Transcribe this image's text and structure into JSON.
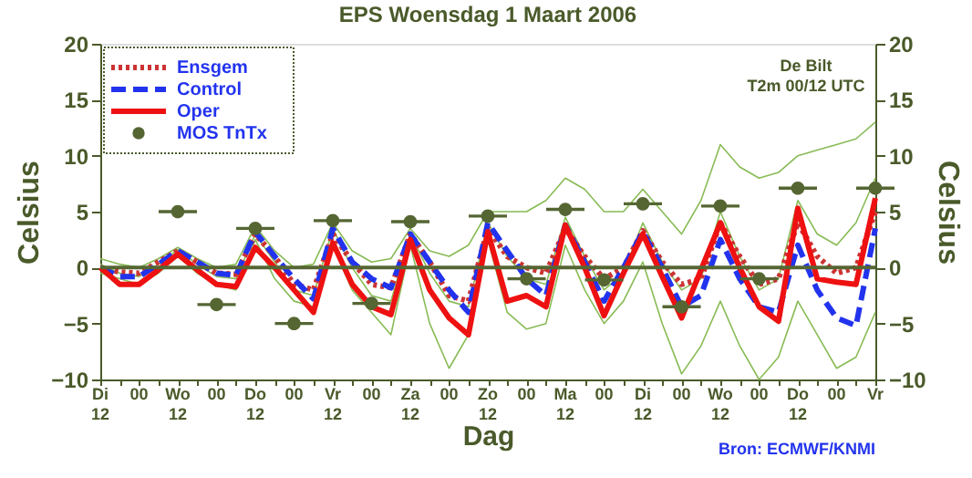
{
  "chart_data": {
    "type": "line",
    "title": "EPS Woensdag 1 Maart 2006",
    "xlabel": "Dag",
    "ylabel": "Celsius",
    "y2label": "Celsius",
    "annotations": [
      "De Bilt",
      "T2m 00/12 UTC",
      "Bron: ECMWF/KNMI"
    ],
    "categories": [
      "Di\n12",
      null,
      "00",
      null,
      "Wo\n12",
      null,
      "00",
      null,
      "Do\n12",
      null,
      "00",
      null,
      "Vr\n12",
      null,
      "00",
      null,
      "Za\n12",
      null,
      "00",
      null,
      "Zo\n12",
      null,
      "00",
      null,
      "Ma\n12",
      null,
      "00",
      null,
      "Di\n12",
      null,
      "00",
      null,
      "Wo\n12",
      null,
      "00",
      null,
      "Do\n12",
      null,
      "00",
      null,
      "Vr"
    ],
    "ylim": [
      -10,
      20
    ],
    "yticks": [
      -10,
      -5,
      0,
      5,
      10,
      15,
      20
    ],
    "y2lim": [
      -10,
      20
    ],
    "y2ticks": [
      -10,
      -5,
      0,
      5,
      10,
      15,
      20
    ],
    "grid": false,
    "legend": "top left",
    "ref_lines": [
      {
        "axis": "y",
        "value": 0,
        "color": "#556633"
      }
    ],
    "series": [
      {
        "color": "#88bb55",
        "line_style": "solid",
        "values": [
          0.8,
          0.3,
          0,
          0.8,
          1.8,
          0.8,
          0,
          0.3,
          3.7,
          1.5,
          0,
          0.3,
          4,
          1.5,
          0.5,
          0.8,
          3.5,
          1.5,
          1,
          2,
          5,
          5,
          5,
          6,
          8,
          7,
          5,
          5,
          7,
          5,
          3,
          6,
          11,
          9,
          8,
          8.5,
          10,
          10.5,
          11,
          11.5,
          13
        ]
      },
      {
        "color": "#88bb55",
        "line_style": "solid",
        "values": [
          -0.5,
          -1,
          -1.5,
          -0.5,
          1,
          -0.5,
          -1.5,
          -2,
          2.5,
          -1,
          -3,
          -3.5,
          2,
          -2,
          -4,
          -6,
          2,
          -5,
          -9,
          -6,
          2.5,
          -4,
          -5.5,
          -5,
          2,
          -2,
          -5,
          -3,
          0.5,
          -5,
          -9.5,
          -7,
          -3,
          -7,
          -10,
          -8,
          -3,
          -6,
          -9,
          -8,
          -4
        ]
      },
      {
        "color": "#88bb55",
        "line_style": "solid",
        "values": [
          0.3,
          -0.5,
          -0.8,
          0.3,
          1.6,
          0.3,
          -0.8,
          -1,
          3,
          0.5,
          -2,
          -2.5,
          3.5,
          0,
          -2.5,
          -3,
          3,
          -0.5,
          -3,
          -3.5,
          4,
          1,
          -1,
          -1.5,
          4.5,
          1,
          -2,
          -0.5,
          4,
          0.5,
          -2,
          -1,
          5,
          1,
          -2,
          -1,
          6,
          3,
          2,
          4,
          8
        ]
      },
      {
        "name": "Ensgem",
        "color": "#cc3333",
        "line_style": "dotted",
        "values": [
          0,
          -0.4,
          -0.5,
          0.5,
          1.5,
          0.5,
          -0.5,
          -0.6,
          3,
          1,
          -1.5,
          -2,
          3,
          0.5,
          -1.5,
          -1.8,
          3,
          0.5,
          -2.5,
          -3,
          3.5,
          1,
          0,
          -0.5,
          3.5,
          1,
          -1,
          0,
          3.3,
          0.5,
          -1.5,
          -1,
          4,
          1,
          -1.5,
          -1,
          4,
          1,
          -0.5,
          0,
          5
        ]
      },
      {
        "name": "Control",
        "color": "#2233ee",
        "line_style": "dashed",
        "values": [
          0,
          -0.8,
          -0.8,
          0.3,
          1.5,
          0.5,
          -0.5,
          -0.7,
          3.2,
          1,
          -1,
          -2.8,
          3.5,
          0.5,
          -1,
          -1.8,
          3,
          0.5,
          -2,
          -4,
          4,
          1.5,
          -1,
          -2.5,
          3.8,
          0.5,
          -3,
          0,
          3.2,
          0,
          -3.5,
          -2.5,
          2.5,
          -1,
          -3.5,
          -4,
          2,
          -2,
          -4.5,
          -5.2,
          3.5
        ]
      },
      {
        "name": "Oper",
        "color": "#ee1111",
        "line_style": "solid",
        "values": [
          0,
          -1.5,
          -1.5,
          -0.2,
          1.2,
          -0.2,
          -1.5,
          -1.7,
          1.8,
          0,
          -2,
          -4,
          2.2,
          -1.5,
          -3.5,
          -4.2,
          2.5,
          -2,
          -4.5,
          -6,
          3.2,
          -3,
          -2.5,
          -3.5,
          3.8,
          0,
          -4.3,
          -0.5,
          3,
          -0.8,
          -4.5,
          -0.2,
          4,
          0,
          -3.5,
          -4.8,
          5.3,
          -1,
          -1.3,
          -1.5,
          6.2
        ]
      },
      {
        "name": "MOS TnTx",
        "type": "scatter",
        "marker": "circle",
        "color": "#556633",
        "values": [
          null,
          null,
          null,
          null,
          5,
          null,
          -3.3,
          null,
          3.5,
          null,
          -5,
          null,
          4.2,
          null,
          -3.2,
          null,
          4.1,
          null,
          null,
          null,
          4.6,
          null,
          -1,
          null,
          5.2,
          null,
          -1.1,
          null,
          5.7,
          null,
          -3.5,
          null,
          5.5,
          null,
          -1,
          null,
          7.1,
          null,
          null,
          null,
          7.1
        ]
      }
    ]
  }
}
